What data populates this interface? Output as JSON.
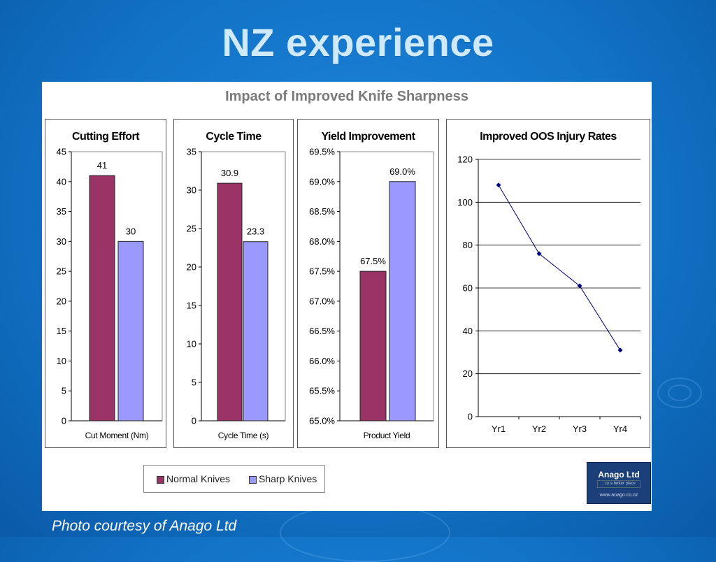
{
  "slide": {
    "title": "NZ experience",
    "caption": "Photo courtesy of Anago Ltd"
  },
  "figure": {
    "main_title": "Impact of Improved Knife Sharpness"
  },
  "legend": {
    "items": [
      {
        "label": "Normal Knives",
        "color": "#993366"
      },
      {
        "label": "Sharp Knives",
        "color": "#9999ff"
      }
    ]
  },
  "logo": {
    "name": "Anago Ltd",
    "tagline": "...to a better place",
    "website": "www.anago.co.nz"
  },
  "colors": {
    "background": "#1273c6",
    "title_text": "#cfe9ff",
    "normal": "#993366",
    "sharp": "#9999ff",
    "line": "#000080"
  },
  "chart_data": [
    {
      "type": "bar",
      "title": "Cutting Effort",
      "categories": [
        "Cut Moment (Nm)"
      ],
      "series": [
        {
          "name": "Normal Knives",
          "values": [
            41
          ]
        },
        {
          "name": "Sharp Knives",
          "values": [
            30
          ]
        }
      ],
      "data_labels": [
        "41",
        "30"
      ],
      "ylim": [
        0,
        45
      ],
      "yticks": [
        "0",
        "5",
        "10",
        "15",
        "20",
        "25",
        "30",
        "35",
        "40",
        "45"
      ],
      "grid": false
    },
    {
      "type": "bar",
      "title": "Cycle Time",
      "categories": [
        "Cycle Time (s)"
      ],
      "series": [
        {
          "name": "Normal Knives",
          "values": [
            30.9
          ]
        },
        {
          "name": "Sharp Knives",
          "values": [
            23.3
          ]
        }
      ],
      "data_labels": [
        "30.9",
        "23.3"
      ],
      "ylim": [
        0,
        35
      ],
      "yticks": [
        "0",
        "5",
        "10",
        "15",
        "20",
        "25",
        "30",
        "35"
      ],
      "grid": false
    },
    {
      "type": "bar",
      "title": "Yield Improvement",
      "categories": [
        "Product Yield"
      ],
      "series": [
        {
          "name": "Normal Knives",
          "values": [
            67.5
          ]
        },
        {
          "name": "Sharp Knives",
          "values": [
            69.0
          ]
        }
      ],
      "data_labels": [
        "67.5%",
        "69.0%"
      ],
      "ylim": [
        65.0,
        69.5
      ],
      "yticks": [
        "65.0%",
        "65.5%",
        "66.0%",
        "66.5%",
        "67.0%",
        "67.5%",
        "68.0%",
        "68.5%",
        "69.0%",
        "69.5%"
      ],
      "grid": false
    },
    {
      "type": "line",
      "title": "Improved OOS Injury Rates",
      "x": [
        "Yr1",
        "Yr2",
        "Yr3",
        "Yr4"
      ],
      "series": [
        {
          "values": [
            108,
            76,
            61,
            31
          ]
        }
      ],
      "ylim": [
        0,
        120
      ],
      "yticks": [
        "0",
        "20",
        "40",
        "60",
        "80",
        "100",
        "120"
      ],
      "grid": true
    }
  ]
}
